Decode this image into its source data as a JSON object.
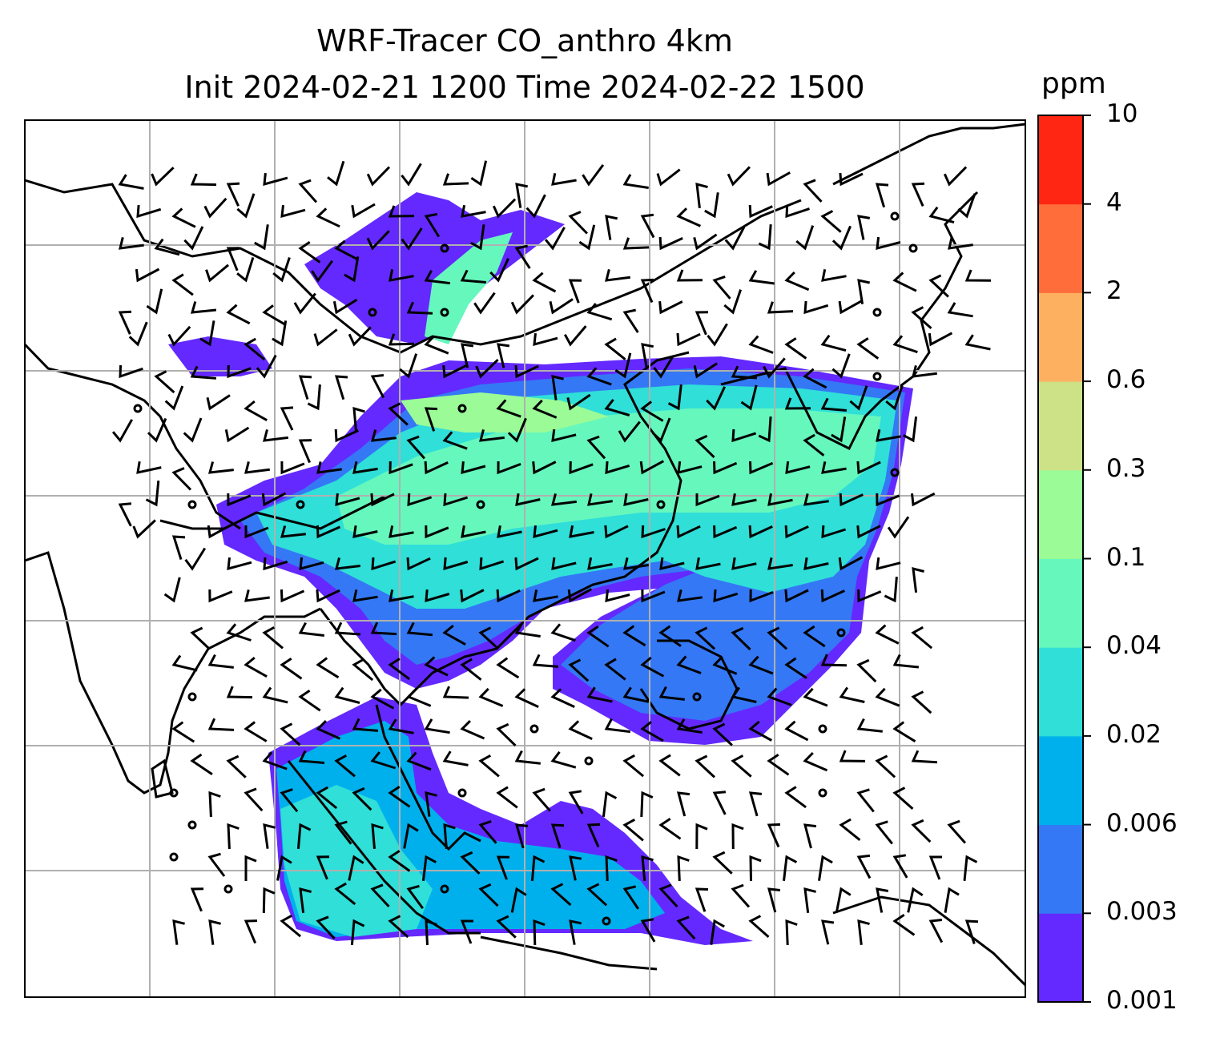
{
  "title_line1": "WRF-Tracer CO_anthro 4km",
  "title_line2": "Init 2024-02-21 1200 Time 2024-02-22 1500",
  "colorbar": {
    "unit": "ppm",
    "labels": [
      "0.001",
      "0.003",
      "0.006",
      "0.02",
      "0.04",
      "0.1",
      "0.3",
      "0.6",
      "2",
      "4",
      "10"
    ],
    "colors": [
      "#6429fe",
      "#3478f5",
      "#00b0ec",
      "#2fdfd8",
      "#66f7bd",
      "#9afb97",
      "#cde187",
      "#feb061",
      "#ff6e3a",
      "#ff2714"
    ]
  },
  "map": {
    "gridlines": true,
    "colors": {
      "grid": "#b0b0b0",
      "coast": "#000000",
      "barb": "#000000"
    },
    "layers": [
      "coastlines",
      "borders",
      "wind-barbs",
      "tracer-fill"
    ]
  }
}
